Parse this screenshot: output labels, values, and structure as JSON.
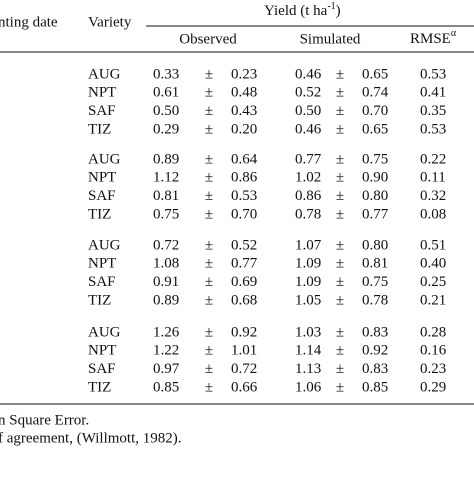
{
  "table": {
    "header": {
      "planting_date": "nting date",
      "variety": "Variety",
      "yield": "Yield (t ha",
      "yield_sup": "-1",
      "yield_close": ")",
      "observed": "Observed",
      "simulated": "Simulated",
      "rmse": "RMSE",
      "rmse_sup": "α"
    },
    "groups": [
      {
        "rows": [
          [
            "AUG",
            "0.33",
            "±",
            "0.23",
            "0.46",
            "±",
            "0.65",
            "0.53"
          ],
          [
            "NPT",
            "0.61",
            "±",
            "0.48",
            "0.52",
            "±",
            "0.74",
            "0.41"
          ],
          [
            "SAF",
            "0.50",
            "±",
            "0.43",
            "0.50",
            "±",
            "0.70",
            "0.35"
          ],
          [
            "TIZ",
            "0.29",
            "±",
            "0.20",
            "0.46",
            "±",
            "0.65",
            "0.53"
          ]
        ]
      },
      {
        "rows": [
          [
            "AUG",
            "0.89",
            "±",
            "0.64",
            "0.77",
            "±",
            "0.75",
            "0.22"
          ],
          [
            "NPT",
            "1.12",
            "±",
            "0.86",
            "1.02",
            "±",
            "0.90",
            "0.11"
          ],
          [
            "SAF",
            "0.81",
            "±",
            "0.53",
            "0.86",
            "±",
            "0.80",
            "0.32"
          ],
          [
            "TIZ",
            "0.75",
            "±",
            "0.70",
            "0.78",
            "±",
            "0.77",
            "0.08"
          ]
        ]
      },
      {
        "rows": [
          [
            "AUG",
            "0.72",
            "±",
            "0.52",
            "1.07",
            "±",
            "0.80",
            "0.51"
          ],
          [
            "NPT",
            "1.08",
            "±",
            "0.77",
            "1.09",
            "±",
            "0.81",
            "0.40"
          ],
          [
            "SAF",
            "0.91",
            "±",
            "0.69",
            "1.09",
            "±",
            "0.75",
            "0.25"
          ],
          [
            "TIZ",
            "0.89",
            "±",
            "0.68",
            "1.05",
            "±",
            "0.78",
            "0.21"
          ]
        ]
      },
      {
        "rows": [
          [
            "AUG",
            "1.26",
            "±",
            "0.92",
            "1.03",
            "±",
            "0.83",
            "0.28"
          ],
          [
            "NPT",
            "1.22",
            "±",
            "1.01",
            "1.14",
            "±",
            "0.92",
            "0.16"
          ],
          [
            "SAF",
            "0.97",
            "±",
            "0.72",
            "1.13",
            "±",
            "0.83",
            "0.23"
          ],
          [
            "TIZ",
            "0.85",
            "±",
            "0.66",
            "1.06",
            "±",
            "0.85",
            "0.29"
          ]
        ]
      }
    ],
    "footnotes": [
      "n Square Error.",
      "f agreement, (Willmott, 1982)."
    ]
  }
}
